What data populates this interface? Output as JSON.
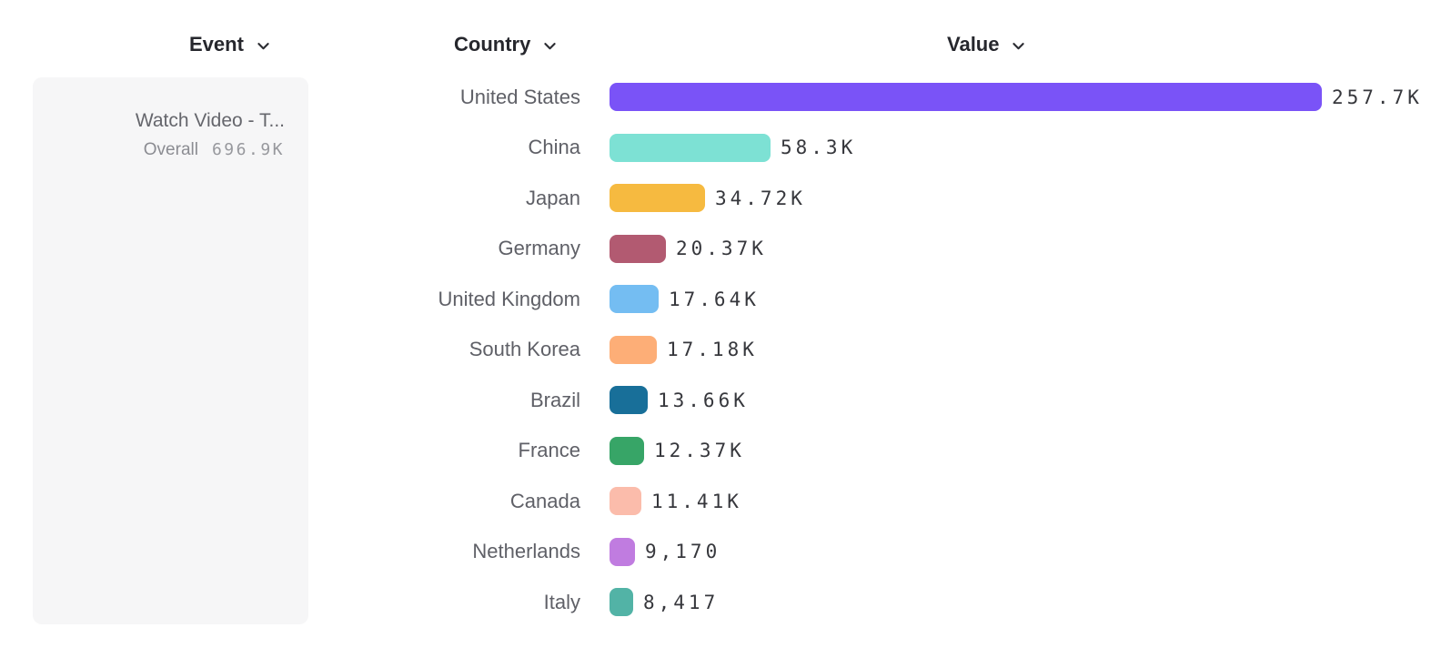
{
  "columns": {
    "event": {
      "label": "Event"
    },
    "country": {
      "label": "Country"
    },
    "value": {
      "label": "Value"
    }
  },
  "event_card": {
    "title": "Watch Video - T...",
    "overall_label": "Overall",
    "overall_value": "696.9K"
  },
  "chart_data": {
    "type": "bar",
    "orientation": "horizontal",
    "title": "",
    "xlabel": "",
    "ylabel": "Country",
    "categories": [
      "United States",
      "China",
      "Japan",
      "Germany",
      "United Kingdom",
      "South Korea",
      "Brazil",
      "France",
      "Canada",
      "Netherlands",
      "Italy"
    ],
    "values": [
      257700,
      58300,
      34720,
      20370,
      17640,
      17180,
      13660,
      12370,
      11410,
      9170,
      8417
    ],
    "value_labels": [
      "257.7K",
      "58.3K",
      "34.72K",
      "20.37K",
      "17.64K",
      "17.18K",
      "13.66K",
      "12.37K",
      "11.41K",
      "9,170",
      "8,417"
    ],
    "colors": [
      "#7a53f7",
      "#7de1d4",
      "#f6ba40",
      "#b25a71",
      "#74bdf2",
      "#fdae77",
      "#186f99",
      "#37a567",
      "#fbbcab",
      "#c07ce0",
      "#52b3a6"
    ],
    "xlim": [
      0,
      257700
    ],
    "grid": false,
    "legend": "none"
  }
}
